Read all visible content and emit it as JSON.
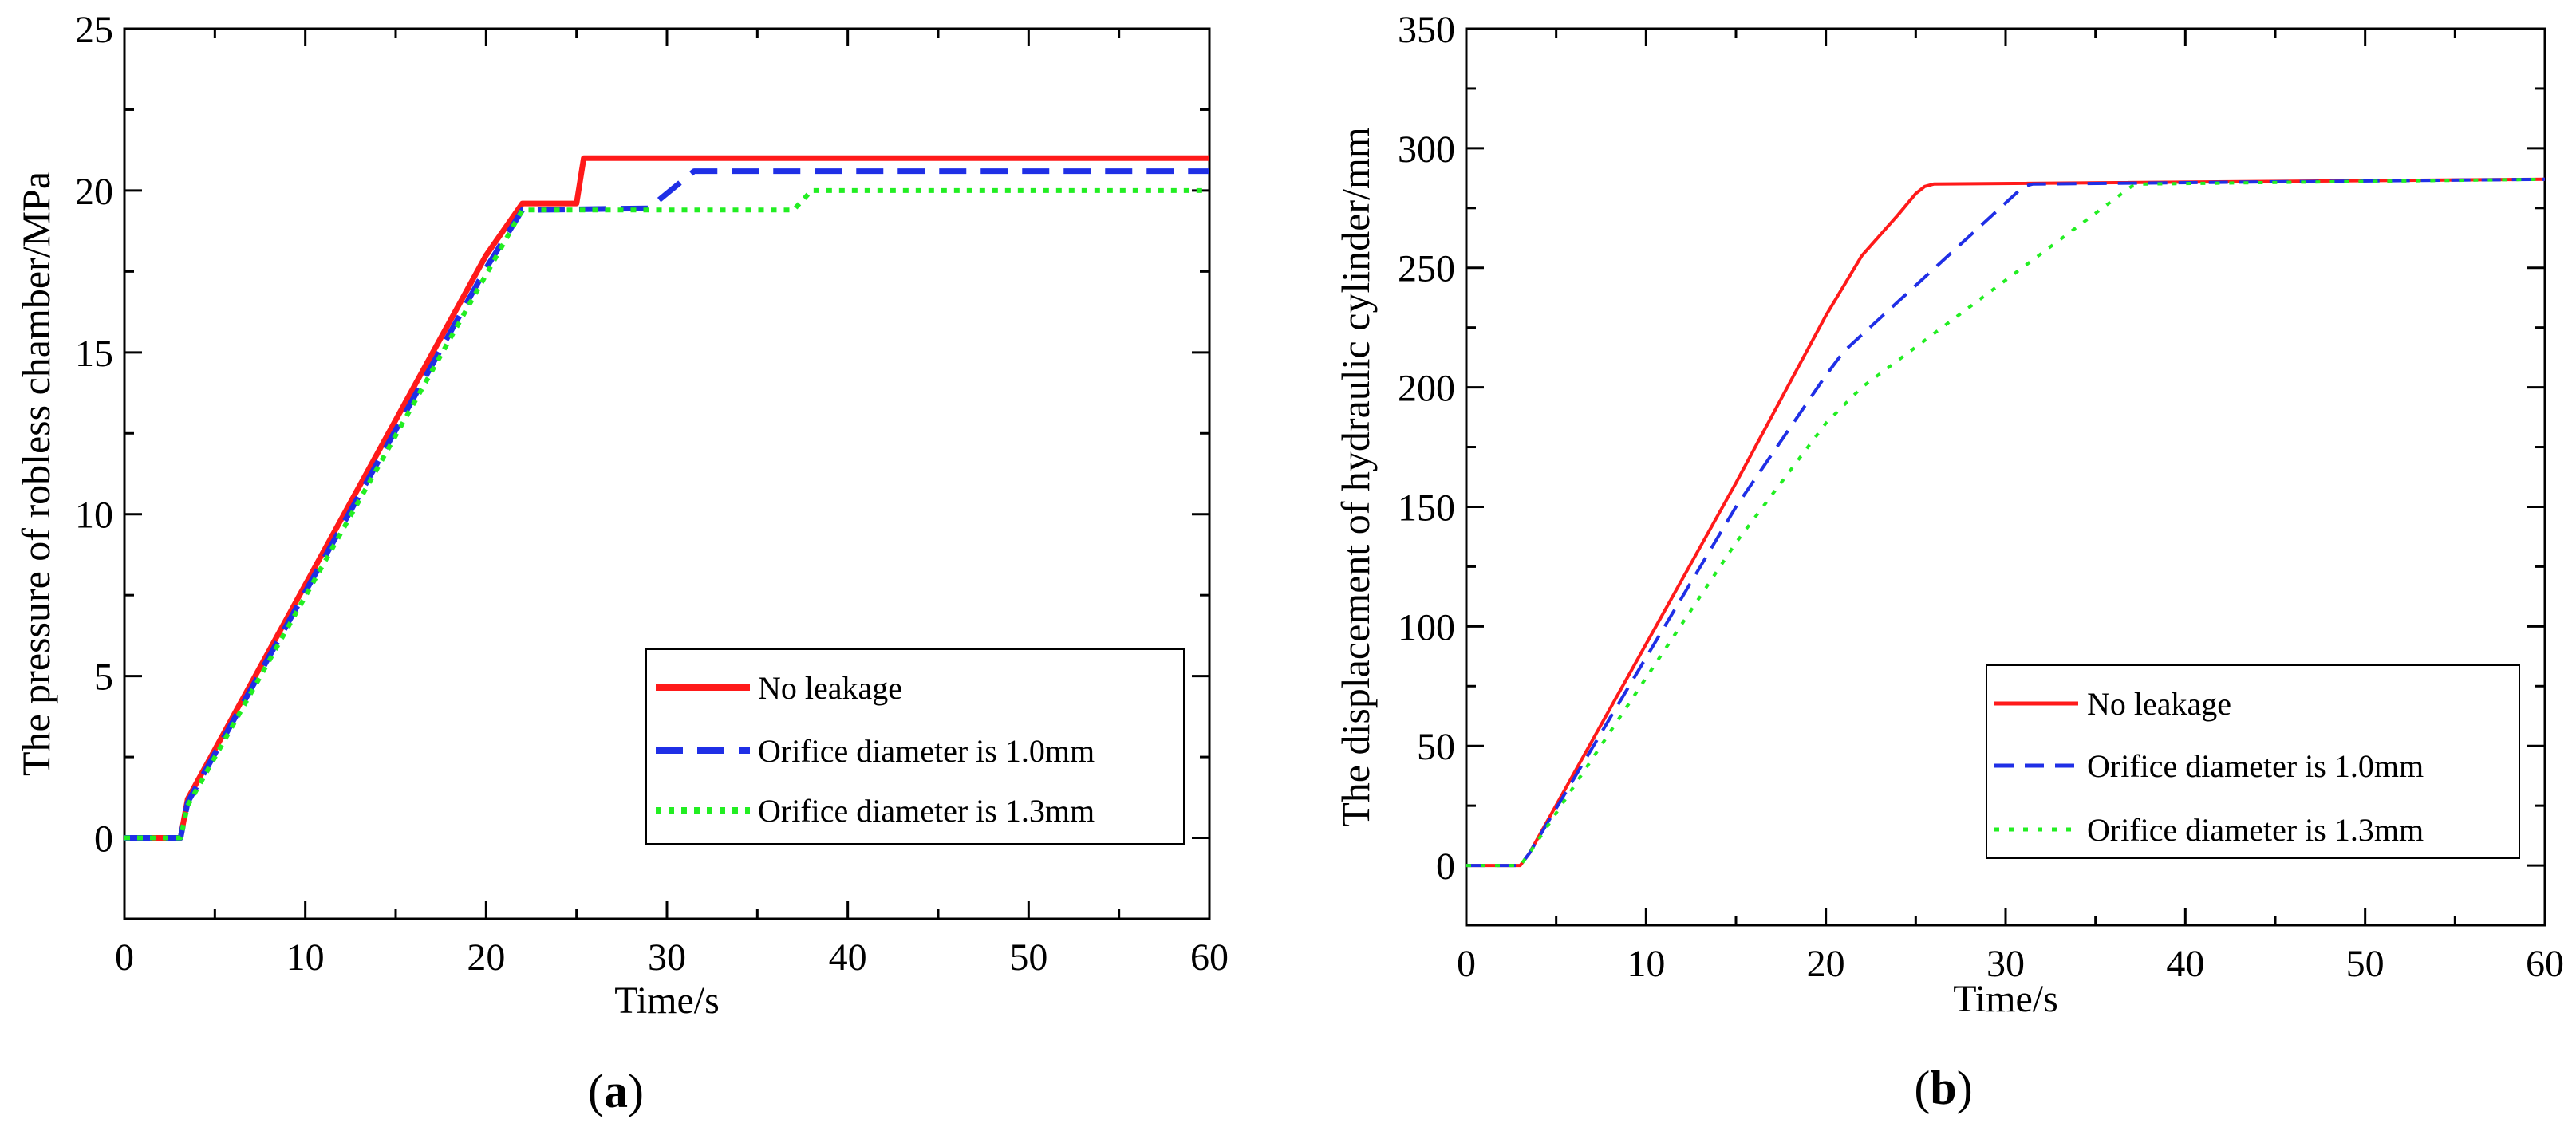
{
  "chart_data": [
    {
      "panel": "(a)",
      "panel_letter": "a",
      "type": "line",
      "xlabel": "Time/s",
      "ylabel": "The pressure of robless chamber/MPa",
      "xlim": [
        0,
        60
      ],
      "ylim": [
        -2.5,
        25
      ],
      "xticks": [
        0,
        10,
        20,
        30,
        40,
        50,
        60
      ],
      "yticks": [
        0,
        5,
        10,
        15,
        20,
        25
      ],
      "legend_position": "bottom-right",
      "series": [
        {
          "name": "No leakage",
          "color": "#ff1a1a",
          "style": "solid",
          "x": [
            0,
            3.1,
            3.5,
            20,
            22,
            25,
            25.4,
            60
          ],
          "y": [
            0,
            0,
            1.2,
            18.0,
            19.6,
            19.6,
            21.0,
            21.0
          ]
        },
        {
          "name": "Orifice diameter is 1.0mm",
          "color": "#1f2fe6",
          "style": "dashed",
          "x": [
            0,
            3.1,
            3.5,
            20,
            22,
            29,
            31.5,
            60
          ],
          "y": [
            0,
            0,
            1.1,
            17.6,
            19.4,
            19.45,
            20.6,
            20.6
          ]
        },
        {
          "name": "Orifice diameter is 1.3mm",
          "color": "#22ee22",
          "style": "dotted",
          "x": [
            0,
            3.1,
            3.5,
            20,
            22,
            37,
            38,
            60
          ],
          "y": [
            0,
            0,
            1.0,
            17.4,
            19.4,
            19.4,
            20.0,
            20.0
          ]
        }
      ]
    },
    {
      "panel": "(b)",
      "panel_letter": "b",
      "type": "line",
      "xlabel": "Time/s",
      "ylabel": "The displacement of hydraulic cylinder/mm",
      "xlim": [
        0,
        60
      ],
      "ylim": [
        -25,
        350
      ],
      "xticks": [
        0,
        10,
        20,
        30,
        40,
        50,
        60
      ],
      "yticks": [
        0,
        50,
        100,
        150,
        200,
        250,
        300,
        350
      ],
      "legend_position": "bottom-right",
      "series": [
        {
          "name": "No leakage",
          "color": "#ff1a1a",
          "style": "solid",
          "x": [
            0,
            3,
            3.5,
            15,
            20,
            22,
            24,
            25,
            25.5,
            26,
            60
          ],
          "y": [
            0,
            0,
            5,
            160,
            230,
            255,
            272,
            281,
            284,
            285,
            287
          ]
        },
        {
          "name": "Orifice diameter is 1.0mm",
          "color": "#1f2fe6",
          "style": "dashed",
          "x": [
            0,
            3,
            3.5,
            15,
            20,
            21,
            31,
            31.5,
            60
          ],
          "y": [
            0,
            0,
            5,
            150,
            205,
            215,
            284,
            285,
            287
          ]
        },
        {
          "name": "Orifice diameter is 1.3mm",
          "color": "#22ee22",
          "style": "dotted",
          "x": [
            0,
            3,
            3.5,
            15,
            20,
            22,
            37,
            37.5,
            60
          ],
          "y": [
            0,
            0,
            5,
            135,
            185,
            200,
            284,
            285,
            287
          ]
        }
      ]
    }
  ]
}
